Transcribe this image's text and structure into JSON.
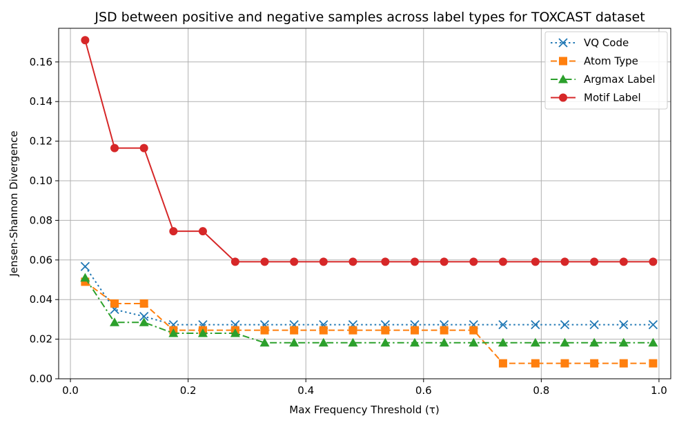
{
  "chart_data": {
    "type": "line",
    "title": "JSD between positive and negative samples across label types for TOXCAST dataset",
    "xlabel": "Max Frequency Threshold (τ)",
    "ylabel": "Jensen-Shannon Divergence",
    "xlim": [
      -0.02,
      1.02
    ],
    "ylim": [
      0.0,
      0.177
    ],
    "xticks": [
      0.0,
      0.2,
      0.4,
      0.6,
      0.8,
      1.0
    ],
    "xtick_labels": [
      "0.0",
      "0.2",
      "0.4",
      "0.6",
      "0.8",
      "1.0"
    ],
    "yticks": [
      0.0,
      0.02,
      0.04,
      0.06,
      0.08,
      0.1,
      0.12,
      0.14,
      0.16
    ],
    "ytick_labels": [
      "0.00",
      "0.02",
      "0.04",
      "0.06",
      "0.08",
      "0.10",
      "0.12",
      "0.14",
      "0.16"
    ],
    "grid": true,
    "legend_position": "top-right",
    "x": [
      0.025,
      0.075,
      0.125,
      0.175,
      0.225,
      0.28,
      0.33,
      0.38,
      0.43,
      0.48,
      0.535,
      0.585,
      0.635,
      0.685,
      0.735,
      0.79,
      0.84,
      0.89,
      0.94,
      0.99
    ],
    "series": [
      {
        "name": "VQ Code",
        "color": "#1f77b4",
        "dash": "dotted",
        "marker": "x",
        "values": [
          0.0567,
          0.035,
          0.0315,
          0.0273,
          0.0273,
          0.0273,
          0.0273,
          0.0273,
          0.0273,
          0.0273,
          0.0273,
          0.0273,
          0.0273,
          0.0273,
          0.0273,
          0.0273,
          0.0273,
          0.0273,
          0.0273,
          0.0273
        ]
      },
      {
        "name": "Atom Type",
        "color": "#ff7f0e",
        "dash": "dashed",
        "marker": "square",
        "values": [
          0.049,
          0.038,
          0.038,
          0.0245,
          0.0245,
          0.0245,
          0.0245,
          0.0245,
          0.0245,
          0.0245,
          0.0245,
          0.0245,
          0.0245,
          0.0245,
          0.0078,
          0.0078,
          0.0078,
          0.0078,
          0.0078,
          0.0078
        ]
      },
      {
        "name": "Argmax Label",
        "color": "#2ca02c",
        "dash": "dashdot",
        "marker": "triangle",
        "values": [
          0.051,
          0.0285,
          0.0285,
          0.023,
          0.023,
          0.023,
          0.0182,
          0.0182,
          0.0182,
          0.0182,
          0.0182,
          0.0182,
          0.0182,
          0.0182,
          0.0182,
          0.0182,
          0.0182,
          0.0182,
          0.0182,
          0.0182
        ]
      },
      {
        "name": "Motif Label",
        "color": "#d62728",
        "dash": "solid",
        "marker": "circle",
        "values": [
          0.171,
          0.1165,
          0.1165,
          0.0745,
          0.0745,
          0.0591,
          0.0591,
          0.0591,
          0.0591,
          0.0591,
          0.0591,
          0.0591,
          0.0591,
          0.0591,
          0.0591,
          0.0591,
          0.0591,
          0.0591,
          0.0591,
          0.0591
        ]
      }
    ]
  }
}
